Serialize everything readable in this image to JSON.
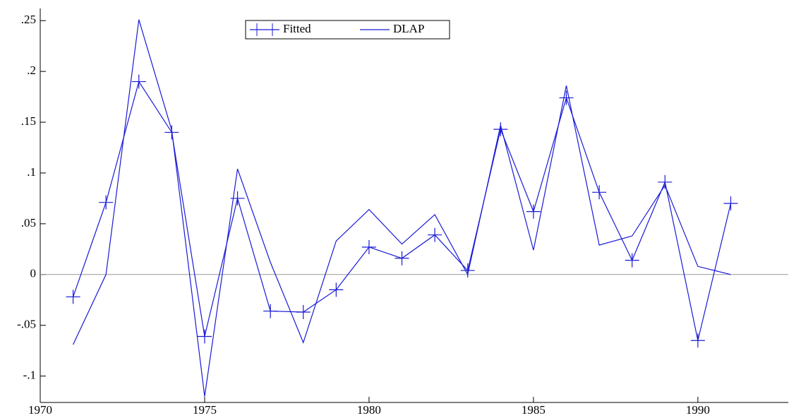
{
  "chart_data": {
    "type": "line",
    "x": [
      1971,
      1972,
      1973,
      1974,
      1975,
      1976,
      1977,
      1978,
      1979,
      1980,
      1981,
      1982,
      1983,
      1984,
      1985,
      1986,
      1987,
      1988,
      1989,
      1990,
      1991
    ],
    "series": [
      {
        "name": "Fitted",
        "color": "#1a1ad6",
        "marker": "plus",
        "values": [
          -0.022,
          0.071,
          0.19,
          0.14,
          -0.061,
          0.075,
          -0.036,
          -0.037,
          -0.015,
          0.027,
          0.016,
          0.039,
          0.004,
          0.143,
          0.062,
          0.174,
          0.081,
          0.014,
          0.091,
          -0.065,
          0.07
        ]
      },
      {
        "name": "DLAP",
        "color": "#1a1ad6",
        "marker": "none",
        "values": [
          -0.069,
          0.0,
          0.251,
          0.142,
          -0.12,
          0.104,
          0.012,
          -0.067,
          0.033,
          0.064,
          0.03,
          0.059,
          0.0,
          0.147,
          0.024,
          0.186,
          0.029,
          0.038,
          0.088,
          0.008,
          0.0
        ]
      }
    ],
    "xlim": [
      1970,
      1992.75
    ],
    "xticks": [
      1970,
      1975,
      1980,
      1985,
      1990
    ],
    "ylim": [
      -0.126,
      0.262
    ],
    "yticks": [
      {
        "value": -0.1,
        "label": "-.1"
      },
      {
        "value": -0.05,
        "label": "-.05"
      },
      0,
      {
        "value": 0.05,
        "label": ".05"
      },
      {
        "value": 0.1,
        "label": ".1"
      },
      {
        "value": 0.15,
        "label": ".15"
      },
      {
        "value": 0.2,
        "label": ".2"
      },
      {
        "value": 0.25,
        "label": ".25"
      }
    ],
    "zero_line": true
  }
}
